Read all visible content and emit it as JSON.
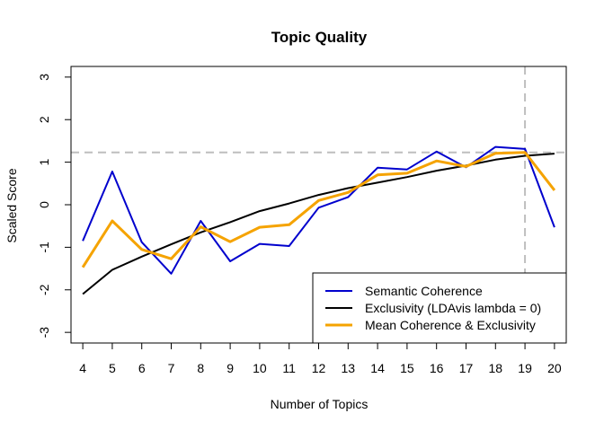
{
  "chart_data": {
    "type": "line",
    "title": "Topic Quality",
    "xlabel": "Number of Topics",
    "ylabel": "Scaled Score",
    "x": [
      4,
      5,
      6,
      7,
      8,
      9,
      10,
      11,
      12,
      13,
      14,
      15,
      16,
      17,
      18,
      19,
      20
    ],
    "xlim": [
      3.6,
      20.4
    ],
    "ylim": [
      -3.25,
      3.25
    ],
    "yticks": [
      -3,
      -2,
      -1,
      0,
      1,
      2,
      3
    ],
    "series": [
      {
        "name": "Semantic Coherence",
        "color": "#0000cd",
        "values": [
          -0.85,
          0.78,
          -0.88,
          -1.62,
          -0.38,
          -1.33,
          -0.92,
          -0.97,
          -0.07,
          0.18,
          0.87,
          0.83,
          1.25,
          0.88,
          1.36,
          1.31,
          -0.53
        ]
      },
      {
        "name": "Exclusivity (LDAvis lambda = 0)",
        "color": "#000000",
        "values": [
          -2.1,
          -1.53,
          -1.22,
          -0.93,
          -0.65,
          -0.41,
          -0.15,
          0.03,
          0.23,
          0.39,
          0.52,
          0.65,
          0.8,
          0.92,
          1.06,
          1.15,
          1.2
        ]
      },
      {
        "name": "Mean Coherence & Exclusivity",
        "color": "#f5a300",
        "values": [
          -1.47,
          -0.38,
          -1.05,
          -1.27,
          -0.52,
          -0.87,
          -0.53,
          -0.47,
          0.1,
          0.29,
          0.7,
          0.74,
          1.03,
          0.9,
          1.21,
          1.23,
          0.34
        ]
      }
    ],
    "reference_lines": {
      "horizontal_y": 1.23,
      "vertical_x": 19,
      "color": "#bebebe",
      "style": "dashed"
    },
    "grid": false,
    "legend_position": "bottom-right"
  }
}
